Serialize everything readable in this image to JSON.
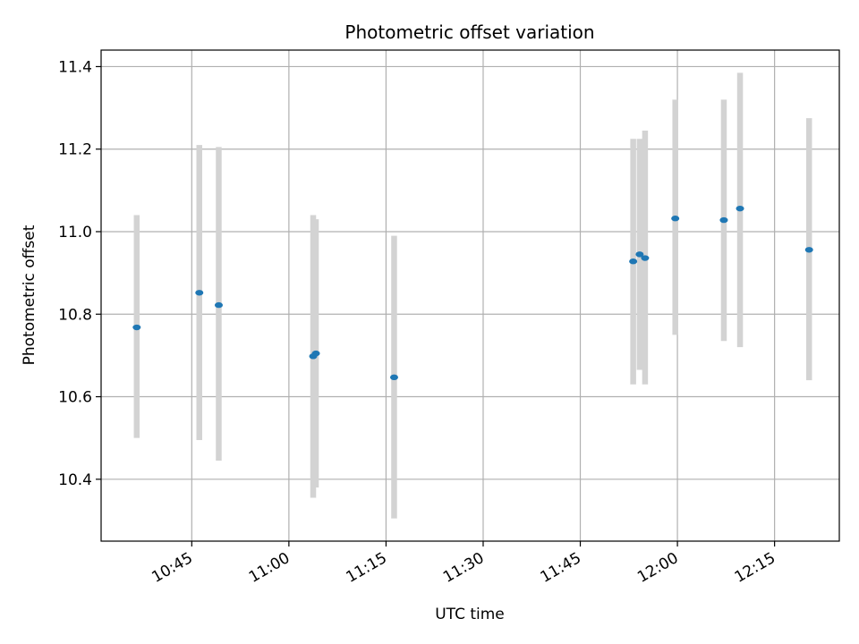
{
  "chart_data": {
    "type": "scatter",
    "title": "Photometric offset variation",
    "xlabel": "UTC time",
    "ylabel": "Photometric offset",
    "grid": true,
    "x_is_time": true,
    "xlim": [
      "10:31",
      "12:25"
    ],
    "ylim": [
      10.25,
      11.44
    ],
    "xticks": [
      "10:45",
      "11:00",
      "11:15",
      "11:30",
      "11:45",
      "12:00",
      "12:15"
    ],
    "yticks": [
      "10.4",
      "10.6",
      "10.8",
      "11.0",
      "11.2",
      "11.4"
    ],
    "colors": {
      "point": "#1f77b4",
      "errorbar": "#d3d3d3",
      "grid": "#b0b0b0"
    },
    "series": [
      {
        "points": [
          {
            "x": "10:36:30",
            "y": 10.768,
            "ylow": 10.5,
            "yhigh": 11.04
          },
          {
            "x": "10:46:10",
            "y": 10.852,
            "ylow": 10.495,
            "yhigh": 11.21
          },
          {
            "x": "10:49:10",
            "y": 10.822,
            "ylow": 10.445,
            "yhigh": 11.205
          },
          {
            "x": "11:03:45",
            "y": 10.698,
            "ylow": 10.355,
            "yhigh": 11.04
          },
          {
            "x": "11:04:10",
            "y": 10.705,
            "ylow": 10.38,
            "yhigh": 11.03
          },
          {
            "x": "11:16:15",
            "y": 10.647,
            "ylow": 10.305,
            "yhigh": 10.99
          },
          {
            "x": "11:53:10",
            "y": 10.928,
            "ylow": 10.63,
            "yhigh": 11.225
          },
          {
            "x": "11:54:10",
            "y": 10.945,
            "ylow": 10.665,
            "yhigh": 11.225
          },
          {
            "x": "11:55:00",
            "y": 10.936,
            "ylow": 10.63,
            "yhigh": 11.245
          },
          {
            "x": "11:59:40",
            "y": 11.032,
            "ylow": 10.75,
            "yhigh": 11.32
          },
          {
            "x": "12:07:10",
            "y": 11.028,
            "ylow": 10.735,
            "yhigh": 11.32
          },
          {
            "x": "12:09:40",
            "y": 11.056,
            "ylow": 10.72,
            "yhigh": 11.385
          },
          {
            "x": "12:20:20",
            "y": 10.956,
            "ylow": 10.64,
            "yhigh": 11.275
          }
        ]
      }
    ]
  }
}
